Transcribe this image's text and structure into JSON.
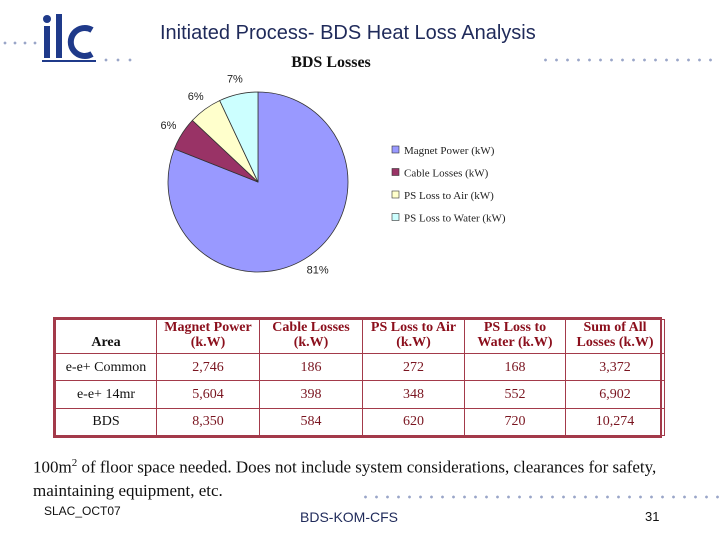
{
  "slide": {
    "title": "Initiated Process- BDS Heat Loss Analysis",
    "logo_text": "ilc",
    "note_prefix": "100m",
    "note_sup": "2",
    "note_text": " of floor space needed. Does not include system considerations, clearances for safety, maintaining equipment, etc.",
    "footer_left": "SLAC_OCT07",
    "footer_center": "BDS-KOM-CFS",
    "page_number": "31"
  },
  "colors": {
    "magnet": "#9999ff",
    "cable": "#993366",
    "air": "#ffffcc",
    "water": "#ccffff",
    "title": "#1f2a5a",
    "table_border": "#a33a4a"
  },
  "chart_data": {
    "type": "pie",
    "title": "BDS Losses",
    "categories": [
      "Magnet Power (kW)",
      "Cable Losses (kW)",
      "PS Loss to Air (kW)",
      "PS Loss to Water (kW)"
    ],
    "values": [
      81,
      6,
      6,
      7
    ],
    "value_labels": [
      "81%",
      "6%",
      "6%",
      "7%"
    ],
    "legend_position": "right"
  },
  "table": {
    "headers": [
      "Area",
      "Magnet Power (k.W)",
      "Cable Losses (k.W)",
      "PS Loss to Air (k.W)",
      "PS Loss to Water (k.W)",
      "Sum of All Losses (k.W)"
    ],
    "rows": [
      [
        "e-e+ Common",
        "2,746",
        "186",
        "272",
        "168",
        "3,372"
      ],
      [
        "e-e+ 14mr",
        "5,604",
        "398",
        "348",
        "552",
        "6,902"
      ],
      [
        "BDS",
        "8,350",
        "584",
        "620",
        "720",
        "10,274"
      ]
    ]
  }
}
